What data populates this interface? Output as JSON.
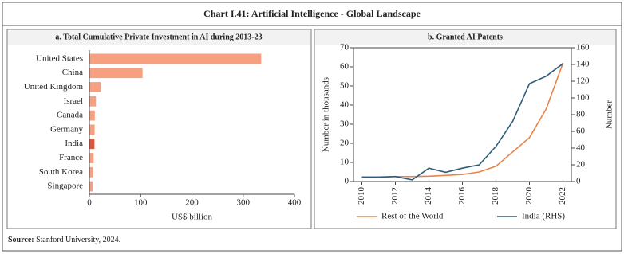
{
  "title": "Chart I.41: Artificial Intelligence - Global Landscape",
  "chart_data": [
    {
      "type": "bar",
      "orientation": "horizontal",
      "title": "a. Total Cumulative Private Investment in AI during 2013-23",
      "categories": [
        "United States",
        "China",
        "United Kingdom",
        "Israel",
        "Canada",
        "Germany",
        "India",
        "France",
        "South Korea",
        "Singapore"
      ],
      "values": [
        335.2,
        103.7,
        22.3,
        12.8,
        10.6,
        10.3,
        9.9,
        8.3,
        7.3,
        6.3
      ],
      "colors": [
        "#f7a07f",
        "#f7a07f",
        "#f7a07f",
        "#f7a07f",
        "#f7a07f",
        "#f7a07f",
        "#e4533a",
        "#f7a07f",
        "#f7a07f",
        "#f7a07f"
      ],
      "xlabel": "US$ billion",
      "xlim": [
        0,
        400
      ],
      "xticks": [
        0,
        100,
        200,
        300,
        400
      ]
    },
    {
      "type": "line",
      "title": "b. Granted AI Patents",
      "x": [
        2010,
        2011,
        2012,
        2013,
        2014,
        2015,
        2016,
        2017,
        2018,
        2019,
        2020,
        2021,
        2022
      ],
      "series": [
        {
          "name": "Rest of the World",
          "color": "#e8834a",
          "values": [
            2.5,
            2.5,
            2.6,
            2.6,
            2.8,
            3.2,
            3.7,
            5,
            8,
            15.5,
            23,
            38,
            62
          ]
        },
        {
          "name": "India (RHS)",
          "color": "#2e5c7a",
          "axis": "y2",
          "values": [
            5,
            5,
            6,
            2,
            16,
            11,
            16,
            20,
            42,
            72,
            117,
            126,
            141
          ]
        }
      ],
      "ylabel": "Number in thousands",
      "y2label": "Number",
      "xlim": [
        2009.5,
        2022.5
      ],
      "xticks": [
        2010,
        2012,
        2014,
        2016,
        2018,
        2020,
        2022
      ],
      "ylim": [
        0,
        70
      ],
      "yticks": [
        0,
        10,
        20,
        30,
        40,
        50,
        60,
        70
      ],
      "y2lim": [
        0,
        160
      ],
      "y2ticks": [
        0,
        20,
        40,
        60,
        80,
        100,
        120,
        140,
        160
      ]
    }
  ],
  "source": {
    "label": "Source:",
    "text": "Stanford University, 2024."
  }
}
